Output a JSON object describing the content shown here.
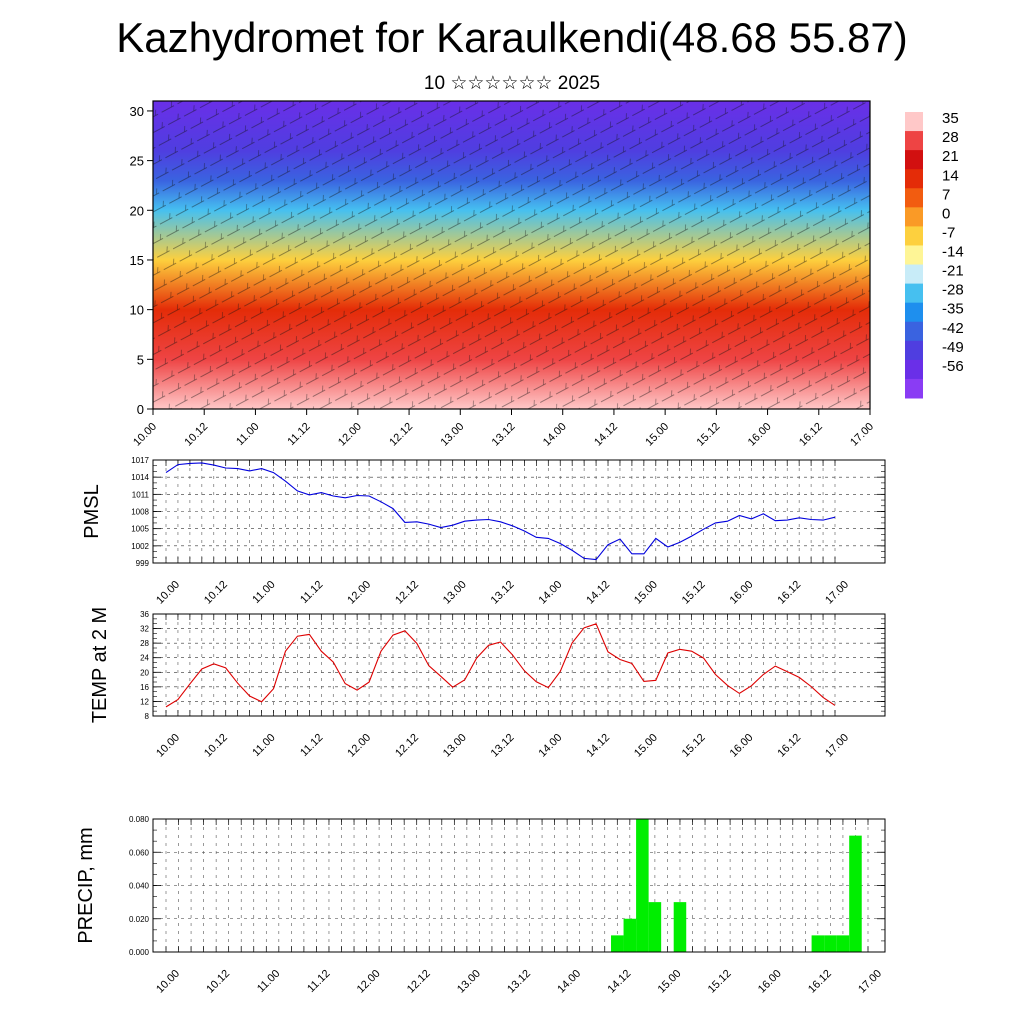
{
  "header": {
    "title": "Kazhydromet for Karaulkendi(48.68 55.87)",
    "subtitle": "10 ☆☆☆☆☆☆ 2025"
  },
  "colors": {
    "pmsl_line": "#0000dd",
    "temp_line": "#dd0000",
    "precip_bar": "#00ee00",
    "colorbar": [
      "#ffc8c8",
      "#ee4444",
      "#d21010",
      "#e42c08",
      "#f25c10",
      "#fa9a26",
      "#fdd03e",
      "#fef596",
      "#c8ecf8",
      "#46c0f0",
      "#1e8fee",
      "#3a63e0",
      "#4f3ee0",
      "#6a2fe8",
      "#8a3cf4"
    ]
  },
  "chart_data": [
    {
      "type": "heatmap",
      "title": "",
      "xlabel": "",
      "ylabel": "",
      "ylim": [
        0,
        31
      ],
      "y_ticks": [
        "0",
        "5",
        "10",
        "15",
        "20",
        "25",
        "30"
      ],
      "x_ticks": [
        "10.00",
        "10.12",
        "11.00",
        "11.12",
        "12.00",
        "12.12",
        "13.00",
        "13.12",
        "14.00",
        "14.12",
        "15.00",
        "15.12",
        "16.00",
        "16.12",
        "17.00"
      ],
      "colorbar_labels": [
        "35",
        "28",
        "21",
        "14",
        "7",
        "0",
        "-7",
        "-14",
        "-21",
        "-28",
        "-35",
        "-42",
        "-49",
        "-56"
      ],
      "overlay": "wind barbs",
      "bands": [
        {
          "level": 0,
          "value": 28
        },
        {
          "level": 5,
          "value": 24
        },
        {
          "level": 10,
          "value": 10
        },
        {
          "level": 15,
          "value": -10
        },
        {
          "level": 20,
          "value": -30
        },
        {
          "level": 23,
          "value": -45
        },
        {
          "level": 26,
          "value": -52
        },
        {
          "level": 31,
          "value": -58
        }
      ]
    },
    {
      "type": "line",
      "ylabel": "PMSL",
      "ylim": [
        999,
        1017
      ],
      "y_ticks": [
        "999",
        "1002",
        "1005",
        "1008",
        "1011",
        "1014",
        "1017"
      ],
      "x_ticks": [
        "10.00",
        "10.12",
        "11.00",
        "11.12",
        "12.00",
        "12.12",
        "13.00",
        "13.12",
        "14.00",
        "14.12",
        "15.00",
        "15.12",
        "16.00",
        "16.12",
        "17.00"
      ],
      "series": [
        {
          "values": [
            1014.8,
            1016.2,
            1016.4,
            1016.5,
            1016.1,
            1015.6,
            1015.5,
            1015.1,
            1015.5,
            1014.8,
            1013.3,
            1011.6,
            1010.9,
            1011.3,
            1010.7,
            1010.4,
            1010.8,
            1010.7,
            1009.7,
            1008.5,
            1006.1,
            1006.2,
            1005.8,
            1005.2,
            1005.6,
            1006.3,
            1006.5,
            1006.6,
            1006.2,
            1005.5,
            1004.6,
            1003.5,
            1003.3,
            1002.4,
            1001.2,
            999.8,
            999.6,
            1002.2,
            1003.2,
            1000.6,
            1000.6,
            1003.3,
            1001.8,
            1002.6,
            1003.7,
            1004.9,
            1006.0,
            1006.3,
            1007.3,
            1006.7,
            1007.6,
            1006.4,
            1006.5,
            1006.9,
            1006.6,
            1006.5,
            1007.0
          ]
        }
      ]
    },
    {
      "type": "line",
      "ylabel": "TEMP at 2 M",
      "ylim": [
        8,
        36
      ],
      "y_ticks": [
        "8",
        "12",
        "16",
        "20",
        "24",
        "28",
        "32",
        "36"
      ],
      "x_ticks": [
        "10.00",
        "10.12",
        "11.00",
        "11.12",
        "12.00",
        "12.12",
        "13.00",
        "13.12",
        "14.00",
        "14.12",
        "15.00",
        "15.12",
        "16.00",
        "16.12",
        "17.00"
      ],
      "series": [
        {
          "values": [
            10.5,
            12.5,
            16.8,
            20.9,
            22.3,
            21.2,
            17.0,
            13.5,
            11.9,
            15.5,
            25.8,
            29.9,
            30.4,
            25.8,
            22.8,
            16.9,
            15.1,
            17.3,
            25.8,
            30.2,
            31.4,
            27.9,
            21.8,
            18.9,
            15.9,
            17.9,
            23.9,
            27.4,
            28.3,
            24.8,
            20.4,
            17.4,
            15.8,
            20.2,
            28.1,
            32.2,
            33.3,
            25.6,
            23.5,
            22.4,
            17.5,
            17.8,
            25.3,
            26.3,
            25.8,
            23.9,
            19.4,
            16.4,
            14.2,
            16.3,
            19.4,
            21.7,
            20.2,
            18.6,
            16.1,
            13.1,
            10.9
          ]
        }
      ]
    },
    {
      "type": "bar",
      "ylabel": "PRECIP, mm",
      "ylim": [
        0,
        0.08
      ],
      "y_ticks": [
        "0.000",
        "0.020",
        "0.040",
        "0.060",
        "0.080"
      ],
      "x_ticks": [
        "10.00",
        "10.12",
        "11.00",
        "11.12",
        "12.00",
        "12.12",
        "13.00",
        "13.12",
        "14.00",
        "14.12",
        "15.00",
        "15.12",
        "16.00",
        "16.12",
        "17.00"
      ],
      "series": [
        {
          "values": [
            0,
            0,
            0,
            0,
            0,
            0,
            0,
            0,
            0,
            0,
            0,
            0,
            0,
            0,
            0,
            0,
            0,
            0,
            0,
            0,
            0,
            0,
            0,
            0,
            0,
            0,
            0,
            0,
            0,
            0,
            0,
            0,
            0,
            0,
            0,
            0,
            0.01,
            0.02,
            0.08,
            0.03,
            0,
            0.03,
            0,
            0,
            0,
            0,
            0,
            0,
            0,
            0,
            0,
            0,
            0.01,
            0.01,
            0.01,
            0.07,
            0
          ]
        }
      ]
    }
  ]
}
